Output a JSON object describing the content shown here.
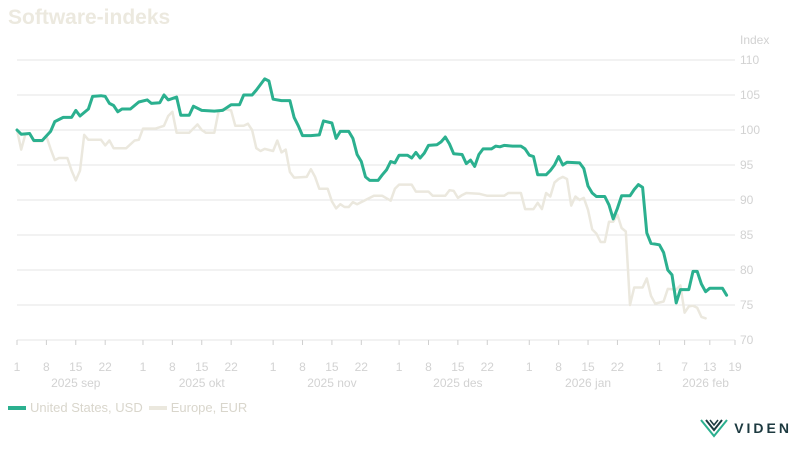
{
  "colors": {
    "us": "#2bb08f",
    "eu": "#ebe8de",
    "grid": "#e6e6e6",
    "tick": "#cfcfcf",
    "bg": "#ffffff"
  },
  "brand": {
    "name": "VIDEN"
  },
  "legend": {
    "us_label": "United States, USD",
    "eu_label": "Europe, EUR"
  },
  "chart_data": {
    "type": "line",
    "title": "Software-indeks",
    "ylabel": "Index",
    "ylim": [
      70,
      110
    ],
    "yticks": [
      70,
      75,
      80,
      85,
      90,
      95,
      100,
      105,
      110
    ],
    "grid": true,
    "legend_position": "bottom-left",
    "xlim": [
      "2025-09-01",
      "2026-02-19"
    ],
    "day_ticks": [
      {
        "date": "2025-09-01",
        "label": "1"
      },
      {
        "date": "2025-09-08",
        "label": "8"
      },
      {
        "date": "2025-09-15",
        "label": "15"
      },
      {
        "date": "2025-09-22",
        "label": "22"
      },
      {
        "date": "2025-10-01",
        "label": "1"
      },
      {
        "date": "2025-10-08",
        "label": "8"
      },
      {
        "date": "2025-10-15",
        "label": "15"
      },
      {
        "date": "2025-10-22",
        "label": "22"
      },
      {
        "date": "2025-11-01",
        "label": "1"
      },
      {
        "date": "2025-11-08",
        "label": "8"
      },
      {
        "date": "2025-11-15",
        "label": "15"
      },
      {
        "date": "2025-11-22",
        "label": "22"
      },
      {
        "date": "2025-12-01",
        "label": "1"
      },
      {
        "date": "2025-12-08",
        "label": "8"
      },
      {
        "date": "2025-12-15",
        "label": "15"
      },
      {
        "date": "2025-12-22",
        "label": "22"
      },
      {
        "date": "2026-01-01",
        "label": "1"
      },
      {
        "date": "2026-01-08",
        "label": "8"
      },
      {
        "date": "2026-01-15",
        "label": "15"
      },
      {
        "date": "2026-01-22",
        "label": "22"
      },
      {
        "date": "2026-02-01",
        "label": "1"
      },
      {
        "date": "2026-02-07",
        "label": "7"
      },
      {
        "date": "2026-02-13",
        "label": "13"
      },
      {
        "date": "2026-02-19",
        "label": "19"
      }
    ],
    "month_labels": [
      {
        "date": "2025-09-15",
        "label": "2025 sep"
      },
      {
        "date": "2025-10-15",
        "label": "2025 okt"
      },
      {
        "date": "2025-11-15",
        "label": "2025 nov"
      },
      {
        "date": "2025-12-15",
        "label": "2025 des"
      },
      {
        "date": "2026-01-15",
        "label": "2026 jan"
      },
      {
        "date": "2026-02-12",
        "label": "2026 feb"
      }
    ],
    "series": [
      {
        "name": "United States, USD",
        "points": [
          [
            "2025-09-01",
            100
          ],
          [
            "2025-09-02",
            99.4
          ],
          [
            "2025-09-04",
            99.5
          ],
          [
            "2025-09-05",
            98.5
          ],
          [
            "2025-09-07",
            98.5
          ],
          [
            "2025-09-09",
            99.8
          ],
          [
            "2025-09-10",
            101.2
          ],
          [
            "2025-09-12",
            101.8
          ],
          [
            "2025-09-14",
            101.8
          ],
          [
            "2025-09-15",
            102.8
          ],
          [
            "2025-09-16",
            102
          ],
          [
            "2025-09-18",
            103
          ],
          [
            "2025-09-19",
            104.8
          ],
          [
            "2025-09-21",
            104.9
          ],
          [
            "2025-09-22",
            104.8
          ],
          [
            "2025-09-23",
            103.8
          ],
          [
            "2025-09-24",
            103.5
          ],
          [
            "2025-09-25",
            102.6
          ],
          [
            "2025-09-26",
            103
          ],
          [
            "2025-09-28",
            103
          ],
          [
            "2025-09-30",
            104
          ],
          [
            "2025-10-02",
            104.3
          ],
          [
            "2025-10-03",
            103.8
          ],
          [
            "2025-10-05",
            103.9
          ],
          [
            "2025-10-06",
            105
          ],
          [
            "2025-10-07",
            104.3
          ],
          [
            "2025-10-09",
            104.7
          ],
          [
            "2025-10-10",
            102.1
          ],
          [
            "2025-10-12",
            102.1
          ],
          [
            "2025-10-13",
            103.4
          ],
          [
            "2025-10-15",
            102.8
          ],
          [
            "2025-10-18",
            102.7
          ],
          [
            "2025-10-20",
            102.8
          ],
          [
            "2025-10-22",
            103.6
          ],
          [
            "2025-10-24",
            103.6
          ],
          [
            "2025-10-25",
            105
          ],
          [
            "2025-10-27",
            105
          ],
          [
            "2025-10-28",
            105.7
          ],
          [
            "2025-10-30",
            107.3
          ],
          [
            "2025-10-31",
            107.0
          ],
          [
            "2025-11-01",
            104.4
          ],
          [
            "2025-11-03",
            104.2
          ],
          [
            "2025-11-05",
            104.2
          ],
          [
            "2025-11-06",
            101.8
          ],
          [
            "2025-11-07",
            100.6
          ],
          [
            "2025-11-08",
            99.2
          ],
          [
            "2025-11-10",
            99.2
          ],
          [
            "2025-11-12",
            99.3
          ],
          [
            "2025-11-13",
            101.3
          ],
          [
            "2025-11-15",
            101
          ],
          [
            "2025-11-16",
            98.8
          ],
          [
            "2025-11-17",
            99.8
          ],
          [
            "2025-11-19",
            99.8
          ],
          [
            "2025-11-20",
            98.8
          ],
          [
            "2025-11-21",
            96.5
          ],
          [
            "2025-11-22",
            95.5
          ],
          [
            "2025-11-23",
            93.3
          ],
          [
            "2025-11-24",
            92.8
          ],
          [
            "2025-11-26",
            92.8
          ],
          [
            "2025-11-27",
            93.6
          ],
          [
            "2025-11-28",
            94.3
          ],
          [
            "2025-11-29",
            95.5
          ],
          [
            "2025-11-30",
            95.3
          ],
          [
            "2025-12-01",
            96.4
          ],
          [
            "2025-12-03",
            96.4
          ],
          [
            "2025-12-04",
            96
          ],
          [
            "2025-12-05",
            96.8
          ],
          [
            "2025-12-06",
            96
          ],
          [
            "2025-12-07",
            96.7
          ],
          [
            "2025-12-08",
            97.8
          ],
          [
            "2025-12-10",
            97.9
          ],
          [
            "2025-12-11",
            98.3
          ],
          [
            "2025-12-12",
            99
          ],
          [
            "2025-12-13",
            98
          ],
          [
            "2025-12-14",
            96.6
          ],
          [
            "2025-12-16",
            96.5
          ],
          [
            "2025-12-17",
            95.2
          ],
          [
            "2025-12-18",
            95.7
          ],
          [
            "2025-12-19",
            94.8
          ],
          [
            "2025-12-20",
            96.5
          ],
          [
            "2025-12-21",
            97.3
          ],
          [
            "2025-12-23",
            97.3
          ],
          [
            "2025-12-24",
            97.7
          ],
          [
            "2025-12-25",
            97.6
          ],
          [
            "2025-12-26",
            97.8
          ],
          [
            "2025-12-28",
            97.7
          ],
          [
            "2025-12-30",
            97.7
          ],
          [
            "2025-12-31",
            97.3
          ],
          [
            "2026-01-01",
            96.4
          ],
          [
            "2026-01-02",
            96.2
          ],
          [
            "2026-01-03",
            93.6
          ],
          [
            "2026-01-05",
            93.6
          ],
          [
            "2026-01-06",
            94.2
          ],
          [
            "2026-01-07",
            95
          ],
          [
            "2026-01-08",
            96.2
          ],
          [
            "2026-01-09",
            95
          ],
          [
            "2026-01-10",
            95.4
          ],
          [
            "2026-01-13",
            95.3
          ],
          [
            "2026-01-14",
            94.5
          ],
          [
            "2026-01-15",
            92
          ],
          [
            "2026-01-16",
            91
          ],
          [
            "2026-01-17",
            90.5
          ],
          [
            "2026-01-19",
            90.5
          ],
          [
            "2026-01-20",
            89.3
          ],
          [
            "2026-01-21",
            87.3
          ],
          [
            "2026-01-22",
            88.8
          ],
          [
            "2026-01-23",
            90.6
          ],
          [
            "2026-01-25",
            90.6
          ],
          [
            "2026-01-26",
            91.5
          ],
          [
            "2026-01-27",
            92.2
          ],
          [
            "2026-01-28",
            91.8
          ],
          [
            "2026-01-29",
            85.3
          ],
          [
            "2026-01-30",
            83.8
          ],
          [
            "2026-02-01",
            83.6
          ],
          [
            "2026-02-02",
            82.5
          ],
          [
            "2026-02-03",
            80
          ],
          [
            "2026-02-04",
            79.3
          ],
          [
            "2026-02-05",
            75.3
          ],
          [
            "2026-02-06",
            77.2
          ],
          [
            "2026-02-08",
            77.2
          ],
          [
            "2026-02-09",
            79.8
          ],
          [
            "2026-02-10",
            79.8
          ],
          [
            "2026-02-11",
            78
          ],
          [
            "2026-02-12",
            76.9
          ],
          [
            "2026-02-13",
            77.4
          ],
          [
            "2026-02-16",
            77.4
          ],
          [
            "2026-02-17",
            76.4
          ]
        ]
      },
      {
        "name": "Europe, EUR",
        "points": [
          [
            "2025-09-01",
            100
          ],
          [
            "2025-09-02",
            97.2
          ],
          [
            "2025-09-03",
            99.4
          ],
          [
            "2025-09-04",
            99.5
          ],
          [
            "2025-09-05",
            98.4
          ],
          [
            "2025-09-07",
            98.4
          ],
          [
            "2025-09-08",
            99.1
          ],
          [
            "2025-09-09",
            97.3
          ],
          [
            "2025-09-10",
            95.7
          ],
          [
            "2025-09-11",
            96
          ],
          [
            "2025-09-13",
            96
          ],
          [
            "2025-09-14",
            94.2
          ],
          [
            "2025-09-15",
            92.8
          ],
          [
            "2025-09-16",
            94.2
          ],
          [
            "2025-09-17",
            99.3
          ],
          [
            "2025-09-18",
            98.6
          ],
          [
            "2025-09-21",
            98.6
          ],
          [
            "2025-09-22",
            97.8
          ],
          [
            "2025-09-23",
            98.5
          ],
          [
            "2025-09-24",
            97.4
          ],
          [
            "2025-09-27",
            97.4
          ],
          [
            "2025-09-29",
            98.5
          ],
          [
            "2025-09-30",
            98.6
          ],
          [
            "2025-10-01",
            100.2
          ],
          [
            "2025-10-04",
            100.2
          ],
          [
            "2025-10-06",
            100.6
          ],
          [
            "2025-10-07",
            102
          ],
          [
            "2025-10-08",
            102.6
          ],
          [
            "2025-10-09",
            99.6
          ],
          [
            "2025-10-12",
            99.6
          ],
          [
            "2025-10-14",
            100.8
          ],
          [
            "2025-10-15",
            100
          ],
          [
            "2025-10-16",
            99.6
          ],
          [
            "2025-10-18",
            99.6
          ],
          [
            "2025-10-19",
            102.6
          ],
          [
            "2025-10-20",
            103
          ],
          [
            "2025-10-22",
            102.8
          ],
          [
            "2025-10-23",
            100.6
          ],
          [
            "2025-10-25",
            100.6
          ],
          [
            "2025-10-26",
            100.9
          ],
          [
            "2025-10-27",
            100
          ],
          [
            "2025-10-28",
            97.4
          ],
          [
            "2025-10-29",
            97
          ],
          [
            "2025-10-30",
            97.3
          ],
          [
            "2025-11-01",
            97
          ],
          [
            "2025-11-02",
            98.5
          ],
          [
            "2025-11-03",
            96.8
          ],
          [
            "2025-11-04",
            97.2
          ],
          [
            "2025-11-05",
            94
          ],
          [
            "2025-11-06",
            93.2
          ],
          [
            "2025-11-09",
            93.3
          ],
          [
            "2025-11-10",
            94.4
          ],
          [
            "2025-11-11",
            93.3
          ],
          [
            "2025-11-12",
            91.6
          ],
          [
            "2025-11-14",
            91.6
          ],
          [
            "2025-11-15",
            89.8
          ],
          [
            "2025-11-16",
            88.8
          ],
          [
            "2025-11-17",
            89.4
          ],
          [
            "2025-11-18",
            89
          ],
          [
            "2025-11-19",
            89
          ],
          [
            "2025-11-20",
            89.7
          ],
          [
            "2025-11-21",
            89.4
          ],
          [
            "2025-11-23",
            90
          ],
          [
            "2025-11-25",
            90.6
          ],
          [
            "2025-11-27",
            90.6
          ],
          [
            "2025-11-29",
            89.9
          ],
          [
            "2025-11-30",
            91.6
          ],
          [
            "2025-12-01",
            92.2
          ],
          [
            "2025-12-04",
            92.2
          ],
          [
            "2025-12-05",
            91.2
          ],
          [
            "2025-12-08",
            91.2
          ],
          [
            "2025-12-09",
            90.6
          ],
          [
            "2025-12-12",
            90.6
          ],
          [
            "2025-12-13",
            91.4
          ],
          [
            "2025-12-14",
            91.3
          ],
          [
            "2025-12-15",
            90.3
          ],
          [
            "2025-12-16",
            90.7
          ],
          [
            "2025-12-17",
            91
          ],
          [
            "2025-12-20",
            90.9
          ],
          [
            "2025-12-22",
            90.6
          ],
          [
            "2025-12-26",
            90.6
          ],
          [
            "2025-12-27",
            91
          ],
          [
            "2025-12-28",
            91
          ],
          [
            "2025-12-30",
            91
          ],
          [
            "2025-12-31",
            88.7
          ],
          [
            "2026-01-02",
            88.7
          ],
          [
            "2026-01-03",
            89.6
          ],
          [
            "2026-01-04",
            88.7
          ],
          [
            "2026-01-05",
            91
          ],
          [
            "2026-01-06",
            90.5
          ],
          [
            "2026-01-07",
            92.5
          ],
          [
            "2026-01-08",
            93
          ],
          [
            "2026-01-09",
            93.3
          ],
          [
            "2026-01-10",
            93
          ],
          [
            "2026-01-11",
            89.2
          ],
          [
            "2026-01-12",
            90.5
          ],
          [
            "2026-01-13",
            90
          ],
          [
            "2026-01-14",
            90.3
          ],
          [
            "2026-01-15",
            88.6
          ],
          [
            "2026-01-16",
            85.8
          ],
          [
            "2026-01-17",
            85.2
          ],
          [
            "2026-01-18",
            84
          ],
          [
            "2026-01-19",
            84
          ],
          [
            "2026-01-20",
            86.9
          ],
          [
            "2026-01-21",
            86.9
          ],
          [
            "2026-01-22",
            87.9
          ],
          [
            "2026-01-23",
            86
          ],
          [
            "2026-01-24",
            85.5
          ],
          [
            "2026-01-25",
            75
          ],
          [
            "2026-01-26",
            77.5
          ],
          [
            "2026-01-28",
            77.5
          ],
          [
            "2026-01-29",
            78.8
          ],
          [
            "2026-01-30",
            76.3
          ],
          [
            "2026-01-31",
            75.2
          ],
          [
            "2026-02-02",
            75.5
          ],
          [
            "2026-02-03",
            77.3
          ],
          [
            "2026-02-05",
            77.2
          ],
          [
            "2026-02-06",
            77.8
          ],
          [
            "2026-02-07",
            73.9
          ],
          [
            "2026-02-08",
            74.8
          ],
          [
            "2026-02-09",
            74.9
          ],
          [
            "2026-02-10",
            74.6
          ],
          [
            "2026-02-11",
            73.3
          ],
          [
            "2026-02-12",
            73.1
          ]
        ]
      }
    ]
  }
}
